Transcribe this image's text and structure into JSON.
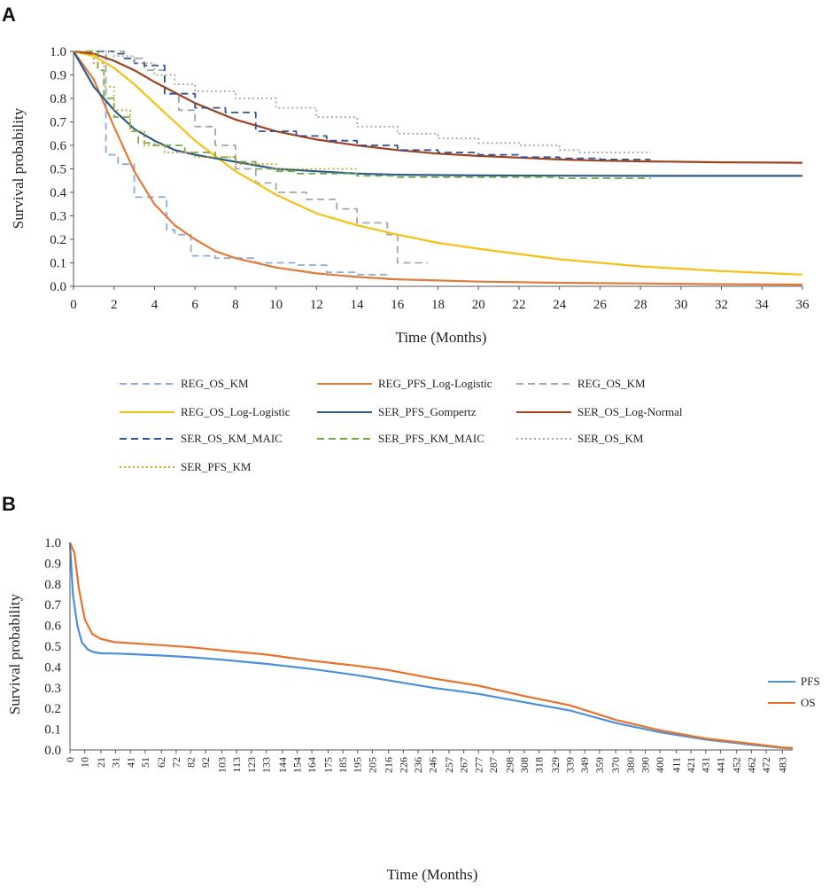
{
  "figure": {
    "panels": [
      "A",
      "B"
    ]
  },
  "chart_data": [
    {
      "panel": "A",
      "type": "line",
      "title": "",
      "xlabel": "Time (Months)",
      "ylabel": "Survival probability",
      "xlim": [
        0,
        36
      ],
      "ylim": [
        0,
        1.0
      ],
      "xticks": [
        0,
        2,
        4,
        6,
        8,
        10,
        12,
        14,
        16,
        18,
        20,
        22,
        24,
        26,
        28,
        30,
        32,
        34,
        36
      ],
      "yticks": [
        0.0,
        0.1,
        0.2,
        0.3,
        0.4,
        0.5,
        0.6,
        0.7,
        0.8,
        0.9,
        1.0
      ],
      "legend_position": "bottom",
      "series": [
        {
          "name": "REG_OS_KM",
          "color": "#8eaadb",
          "style": "dashed",
          "step": true,
          "x": [
            0,
            1.5,
            1.6,
            2.2,
            3.0,
            4.0,
            4.6,
            5.0,
            5.8,
            7.0,
            9.0,
            10.0,
            11.0,
            12.5,
            14.0,
            15.5,
            16.5
          ],
          "y": [
            1.0,
            1.0,
            0.56,
            0.52,
            0.38,
            0.38,
            0.24,
            0.22,
            0.13,
            0.12,
            0.1,
            0.1,
            0.09,
            0.06,
            0.05,
            0.03,
            0.03
          ]
        },
        {
          "name": "REG_PFS_Log-Logistic",
          "color": "#e07b39",
          "style": "solid",
          "step": false,
          "x": [
            0,
            1,
            2,
            3,
            4,
            5,
            6,
            7,
            8,
            10,
            12,
            14,
            16,
            18,
            20,
            24,
            28,
            32,
            36
          ],
          "y": [
            1.0,
            0.88,
            0.68,
            0.49,
            0.35,
            0.26,
            0.2,
            0.15,
            0.12,
            0.08,
            0.055,
            0.04,
            0.03,
            0.025,
            0.02,
            0.015,
            0.012,
            0.009,
            0.007
          ]
        },
        {
          "name": "REG_OS_KM",
          "color": "#a6a6a6",
          "style": "dashed",
          "step": true,
          "x": [
            0,
            2.5,
            3.5,
            4.5,
            5.2,
            6.0,
            7.0,
            8.0,
            9.0,
            10.0,
            11.5,
            13.0,
            14.0,
            15.5,
            16.0,
            17.5
          ],
          "y": [
            1.0,
            0.97,
            0.92,
            0.82,
            0.75,
            0.68,
            0.6,
            0.5,
            0.44,
            0.4,
            0.37,
            0.33,
            0.27,
            0.22,
            0.1,
            0.1
          ]
        },
        {
          "name": "REG_OS_Log-Logistic",
          "color": "#f5c013",
          "style": "solid",
          "step": false,
          "x": [
            0,
            1,
            2,
            3,
            4,
            5,
            6,
            8,
            10,
            12,
            14,
            16,
            18,
            20,
            24,
            28,
            32,
            36
          ],
          "y": [
            1.0,
            0.98,
            0.93,
            0.86,
            0.78,
            0.7,
            0.62,
            0.49,
            0.39,
            0.31,
            0.26,
            0.22,
            0.185,
            0.16,
            0.115,
            0.085,
            0.065,
            0.05
          ]
        },
        {
          "name": "SER_PFS_Gompertz",
          "color": "#2e5b8a",
          "style": "solid",
          "step": false,
          "x": [
            0,
            1,
            2,
            3,
            4,
            5,
            6,
            8,
            10,
            12,
            14,
            16,
            20,
            24,
            28,
            32,
            36
          ],
          "y": [
            1.0,
            0.85,
            0.75,
            0.67,
            0.62,
            0.58,
            0.56,
            0.53,
            0.5,
            0.49,
            0.48,
            0.475,
            0.472,
            0.471,
            0.47,
            0.47,
            0.47
          ]
        },
        {
          "name": "SER_OS_Log-Normal",
          "color": "#a0401f",
          "style": "solid",
          "step": false,
          "x": [
            0,
            1,
            2,
            3,
            4,
            6,
            8,
            10,
            12,
            14,
            16,
            18,
            20,
            22,
            24,
            26,
            28,
            30,
            32,
            34,
            36
          ],
          "y": [
            1.0,
            0.99,
            0.96,
            0.92,
            0.87,
            0.78,
            0.71,
            0.66,
            0.625,
            0.6,
            0.58,
            0.565,
            0.555,
            0.548,
            0.54,
            0.535,
            0.532,
            0.53,
            0.528,
            0.527,
            0.526
          ]
        },
        {
          "name": "SER_OS_KM_MAIC",
          "color": "#2f5597",
          "style": "dashed",
          "step": true,
          "x": [
            0,
            2.0,
            2.5,
            3.0,
            3.5,
            4.0,
            4.5,
            6.0,
            7.5,
            9.0,
            11.0,
            12.5,
            14.0,
            16.0,
            18.0,
            20.0,
            22.0,
            24.0,
            26.0,
            28.5
          ],
          "y": [
            1.0,
            0.99,
            0.97,
            0.95,
            0.94,
            0.94,
            0.82,
            0.76,
            0.74,
            0.66,
            0.64,
            0.62,
            0.6,
            0.58,
            0.57,
            0.56,
            0.55,
            0.545,
            0.54,
            0.54
          ]
        },
        {
          "name": "SER_PFS_KM_MAIC",
          "color": "#70ad47",
          "style": "dashed",
          "step": true,
          "x": [
            0,
            1.2,
            1.5,
            2.0,
            2.8,
            3.2,
            4.0,
            5.5,
            7.0,
            8.0,
            9.0,
            10.0,
            11.0,
            12.0,
            14.0,
            16.0,
            20.0,
            24.0,
            28.5
          ],
          "y": [
            1.0,
            0.92,
            0.8,
            0.72,
            0.66,
            0.61,
            0.6,
            0.57,
            0.55,
            0.53,
            0.5,
            0.49,
            0.48,
            0.48,
            0.47,
            0.465,
            0.465,
            0.46,
            0.46
          ]
        },
        {
          "name": "SER_OS_KM",
          "color": "#a6a6a6",
          "style": "dotted",
          "step": true,
          "x": [
            0,
            2.0,
            3.0,
            4.0,
            5.0,
            6.0,
            8.0,
            10.0,
            12.0,
            14.0,
            16.0,
            18.0,
            20.0,
            22.0,
            24.0,
            25.0,
            28.5
          ],
          "y": [
            1.0,
            0.98,
            0.95,
            0.9,
            0.86,
            0.83,
            0.8,
            0.76,
            0.72,
            0.68,
            0.65,
            0.63,
            0.61,
            0.6,
            0.58,
            0.57,
            0.57
          ]
        },
        {
          "name": "SER_PFS_KM",
          "color": "#c9a227",
          "style": "dotted",
          "step": true,
          "x": [
            0,
            1.0,
            1.5,
            2.0,
            2.8,
            3.5,
            4.5,
            6.0,
            8.0,
            10.0,
            12.0,
            14.0
          ],
          "y": [
            1.0,
            0.95,
            0.85,
            0.75,
            0.66,
            0.6,
            0.57,
            0.55,
            0.52,
            0.5,
            0.5,
            0.5
          ]
        }
      ]
    },
    {
      "panel": "B",
      "type": "line",
      "title": "",
      "xlabel": "Time (Months)",
      "ylabel": "Survival probability",
      "xlim": [
        0,
        490
      ],
      "ylim": [
        0,
        1.0
      ],
      "xticks": [
        "0",
        "10",
        "21",
        "31",
        "41",
        "51",
        "62",
        "72",
        "82",
        "92",
        "103",
        "113",
        "123",
        "133",
        "144",
        "154",
        "164",
        "175",
        "185",
        "195",
        "205",
        "216",
        "226",
        "236",
        "246",
        "257",
        "267",
        "277",
        "287",
        "298",
        "308",
        "318",
        "329",
        "339",
        "349",
        "359",
        "370",
        "380",
        "390",
        "400",
        "411",
        "421",
        "431",
        "441",
        "452",
        "462",
        "472",
        "483"
      ],
      "yticks": [
        0.0,
        0.1,
        0.2,
        0.3,
        0.4,
        0.5,
        0.6,
        0.7,
        0.8,
        0.9,
        1.0
      ],
      "legend_position": "right",
      "series": [
        {
          "name": "PFS",
          "color": "#4a90d9",
          "x": [
            0,
            2,
            5,
            8,
            12,
            16,
            21,
            30,
            41,
            62,
            82,
            103,
            133,
            164,
            195,
            216,
            246,
            277,
            308,
            339,
            370,
            400,
            431,
            462,
            483,
            490
          ],
          "y": [
            1.0,
            0.75,
            0.6,
            0.52,
            0.485,
            0.472,
            0.466,
            0.465,
            0.462,
            0.455,
            0.447,
            0.435,
            0.415,
            0.39,
            0.36,
            0.335,
            0.3,
            0.27,
            0.23,
            0.19,
            0.13,
            0.085,
            0.05,
            0.025,
            0.01,
            0.008
          ]
        },
        {
          "name": "OS",
          "color": "#e8722a",
          "x": [
            0,
            3,
            6,
            10,
            15,
            21,
            30,
            41,
            62,
            82,
            103,
            133,
            164,
            195,
            216,
            246,
            277,
            308,
            339,
            370,
            400,
            431,
            462,
            483,
            490
          ],
          "y": [
            1.0,
            0.95,
            0.78,
            0.63,
            0.56,
            0.535,
            0.52,
            0.515,
            0.505,
            0.495,
            0.48,
            0.46,
            0.43,
            0.405,
            0.385,
            0.345,
            0.31,
            0.26,
            0.215,
            0.145,
            0.095,
            0.055,
            0.03,
            0.012,
            0.01
          ]
        }
      ]
    }
  ]
}
